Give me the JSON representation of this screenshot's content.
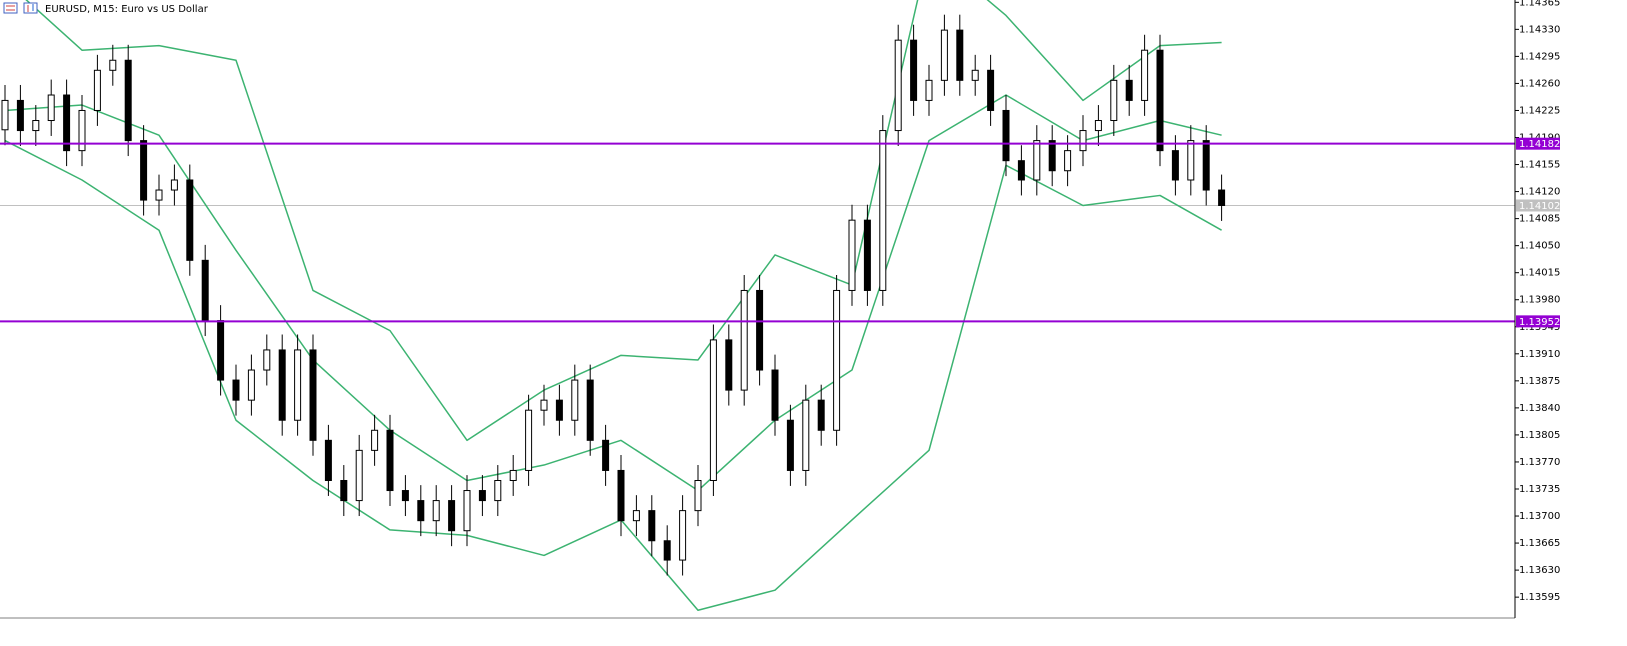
{
  "chart_data": {
    "type": "candlestick",
    "title": "EURUSD, M15:  Euro vs US Dollar",
    "up_color": "#ffffff",
    "down_color": "#000000",
    "open": [
      1.142,
      1.14238,
      1.14199,
      1.14212,
      1.14245,
      1.14173,
      1.14225,
      1.14277,
      1.1429,
      1.14186,
      1.14109,
      1.14122,
      1.14135,
      1.14031,
      1.13953,
      1.13876,
      1.1385,
      1.13889,
      1.13915,
      1.13824,
      1.13915,
      1.13798,
      1.13746,
      1.1372,
      1.13785,
      1.13811,
      1.13733,
      1.1372,
      1.13694,
      1.1372,
      1.13681,
      1.13733,
      1.1372,
      1.13746,
      1.13759,
      1.13837,
      1.1385,
      1.13824,
      1.13876,
      1.13798,
      1.13759,
      1.13694,
      1.13707,
      1.13668,
      1.13643,
      1.13707,
      1.13746,
      1.13928,
      1.13863,
      1.13992,
      1.13889,
      1.13824,
      1.13759,
      1.1385,
      1.13811,
      1.13992,
      1.14083,
      1.13992,
      1.14199,
      1.14316,
      1.14238,
      1.14264,
      1.14329,
      1.14264,
      1.14277,
      1.14225,
      1.1416,
      1.14135,
      1.14186,
      1.14147,
      1.14173,
      1.14199,
      1.14212,
      1.14264,
      1.14238,
      1.14303,
      1.14173,
      1.14135,
      1.14186,
      1.14122
    ],
    "high": [
      1.14258,
      1.14258,
      1.14232,
      1.14265,
      1.14265,
      1.14245,
      1.14297,
      1.1431,
      1.1431,
      1.14206,
      1.14142,
      1.14155,
      1.14155,
      1.14051,
      1.13973,
      1.13896,
      1.13909,
      1.13935,
      1.13935,
      1.13935,
      1.13935,
      1.13818,
      1.13766,
      1.13805,
      1.13831,
      1.13831,
      1.13753,
      1.1374,
      1.1374,
      1.1374,
      1.13753,
      1.13753,
      1.13766,
      1.13779,
      1.13857,
      1.1387,
      1.1387,
      1.13896,
      1.13896,
      1.13818,
      1.13779,
      1.13727,
      1.13727,
      1.13688,
      1.13727,
      1.13766,
      1.13948,
      1.13948,
      1.14012,
      1.14012,
      1.13909,
      1.13844,
      1.1387,
      1.1387,
      1.14012,
      1.14103,
      1.14103,
      1.14219,
      1.14336,
      1.14336,
      1.14284,
      1.14349,
      1.14349,
      1.14297,
      1.14297,
      1.14245,
      1.1418,
      1.14206,
      1.14206,
      1.14193,
      1.14219,
      1.14232,
      1.14284,
      1.14284,
      1.14323,
      1.14323,
      1.14193,
      1.14206,
      1.14206,
      1.14142
    ],
    "low": [
      1.1418,
      1.14179,
      1.14179,
      1.14192,
      1.14153,
      1.14153,
      1.14205,
      1.14257,
      1.14166,
      1.14089,
      1.14089,
      1.14102,
      1.14011,
      1.13933,
      1.13856,
      1.1383,
      1.1383,
      1.13869,
      1.13804,
      1.13804,
      1.13778,
      1.13726,
      1.137,
      1.137,
      1.13765,
      1.13713,
      1.137,
      1.13674,
      1.13674,
      1.13661,
      1.13661,
      1.137,
      1.137,
      1.13726,
      1.13739,
      1.13817,
      1.13804,
      1.13804,
      1.13778,
      1.13739,
      1.13674,
      1.13674,
      1.13648,
      1.13623,
      1.13623,
      1.13687,
      1.13726,
      1.13843,
      1.13843,
      1.13869,
      1.13804,
      1.13739,
      1.13739,
      1.13791,
      1.13791,
      1.13972,
      1.13972,
      1.13972,
      1.14179,
      1.14218,
      1.14218,
      1.14244,
      1.14244,
      1.14244,
      1.14205,
      1.1414,
      1.14115,
      1.14115,
      1.14127,
      1.14127,
      1.14153,
      1.14179,
      1.14192,
      1.14218,
      1.14218,
      1.14153,
      1.14115,
      1.14115,
      1.14102,
      1.14082
    ],
    "close": [
      1.14238,
      1.14199,
      1.14212,
      1.14245,
      1.14173,
      1.14225,
      1.14277,
      1.1429,
      1.14186,
      1.14109,
      1.14122,
      1.14135,
      1.14031,
      1.13953,
      1.13876,
      1.1385,
      1.13889,
      1.13915,
      1.13824,
      1.13915,
      1.13798,
      1.13746,
      1.1372,
      1.13785,
      1.13811,
      1.13733,
      1.1372,
      1.13694,
      1.1372,
      1.13681,
      1.13733,
      1.1372,
      1.13746,
      1.13759,
      1.13837,
      1.1385,
      1.13824,
      1.13876,
      1.13798,
      1.13759,
      1.13694,
      1.13707,
      1.13668,
      1.13643,
      1.13707,
      1.13746,
      1.13928,
      1.13863,
      1.13992,
      1.13889,
      1.13824,
      1.13759,
      1.1385,
      1.13811,
      1.13992,
      1.14083,
      1.13992,
      1.14199,
      1.14316,
      1.14238,
      1.14264,
      1.14329,
      1.14264,
      1.14277,
      1.14225,
      1.1416,
      1.14135,
      1.14186,
      1.14147,
      1.14173,
      1.14199,
      1.14212,
      1.14264,
      1.14238,
      1.14303,
      1.14173,
      1.14135,
      1.14186,
      1.14122,
      1.14102
    ],
    "bands": [
      {
        "color": "#3cb371",
        "x": [
          0,
          5,
          10,
          15,
          20,
          25,
          30,
          35,
          40,
          45,
          50,
          55,
          60,
          65,
          70,
          75,
          79
        ],
        "values": [
          1.14393,
          1.14303,
          1.14309,
          1.1429,
          1.13992,
          1.1394,
          1.13798,
          1.13863,
          1.13908,
          1.13902,
          1.14038,
          1.13999,
          1.14432,
          1.14348,
          1.14238,
          1.14309,
          1.14313
        ]
      },
      {
        "color": "#3cb371",
        "x": [
          0,
          5,
          10,
          15,
          20,
          25,
          30,
          35,
          40,
          45,
          50,
          55,
          60,
          65,
          70,
          75,
          79
        ],
        "values": [
          1.14225,
          1.14232,
          1.14193,
          1.14044,
          1.13902,
          1.13811,
          1.13746,
          1.13766,
          1.13798,
          1.13733,
          1.13824,
          1.13889,
          1.14186,
          1.14245,
          1.14186,
          1.14212,
          1.14193
        ]
      },
      {
        "color": "#3cb371",
        "x": [
          0,
          5,
          10,
          15,
          20,
          25,
          30,
          35,
          40,
          45,
          50,
          55,
          60,
          65,
          70,
          75,
          79
        ],
        "values": [
          1.14186,
          1.14135,
          1.1407,
          1.13824,
          1.13746,
          1.13682,
          1.13675,
          1.13649,
          1.13695,
          1.13578,
          1.13604,
          1.13695,
          1.13785,
          1.14154,
          1.14102,
          1.14115,
          1.1407
        ]
      }
    ],
    "hlines": [
      {
        "value": 1.14182,
        "color": "#9400d3"
      },
      {
        "value": 1.13952,
        "color": "#9400d3"
      }
    ],
    "price_line": {
      "value": 1.14102,
      "color": "#c0c0c0"
    },
    "ylim": [
      1.13568,
      1.14368
    ],
    "yticks": [
      1.14365,
      {
        "value": 1.1433,
        "label": "1.14330"
      },
      1.14295,
      {
        "value": 1.1426,
        "label": "1.14260"
      },
      1.14225,
      {
        "value": 1.1419,
        "label": "1.14190"
      },
      1.14155,
      {
        "value": 1.1412,
        "label": "1.14120"
      },
      1.14085,
      {
        "value": 1.1405,
        "label": "1.14050"
      },
      1.14015,
      {
        "value": 1.1398,
        "label": "1.13980"
      },
      1.13945,
      {
        "value": 1.1391,
        "label": "1.13910"
      },
      1.13875,
      {
        "value": 1.1384,
        "label": "1.13840"
      },
      1.13805,
      {
        "value": 1.1377,
        "label": "1.13770"
      },
      1.13735,
      {
        "value": 1.137,
        "label": "1.13700"
      },
      1.13665,
      {
        "value": 1.1363,
        "label": "1.13630"
      },
      1.13595
    ]
  }
}
